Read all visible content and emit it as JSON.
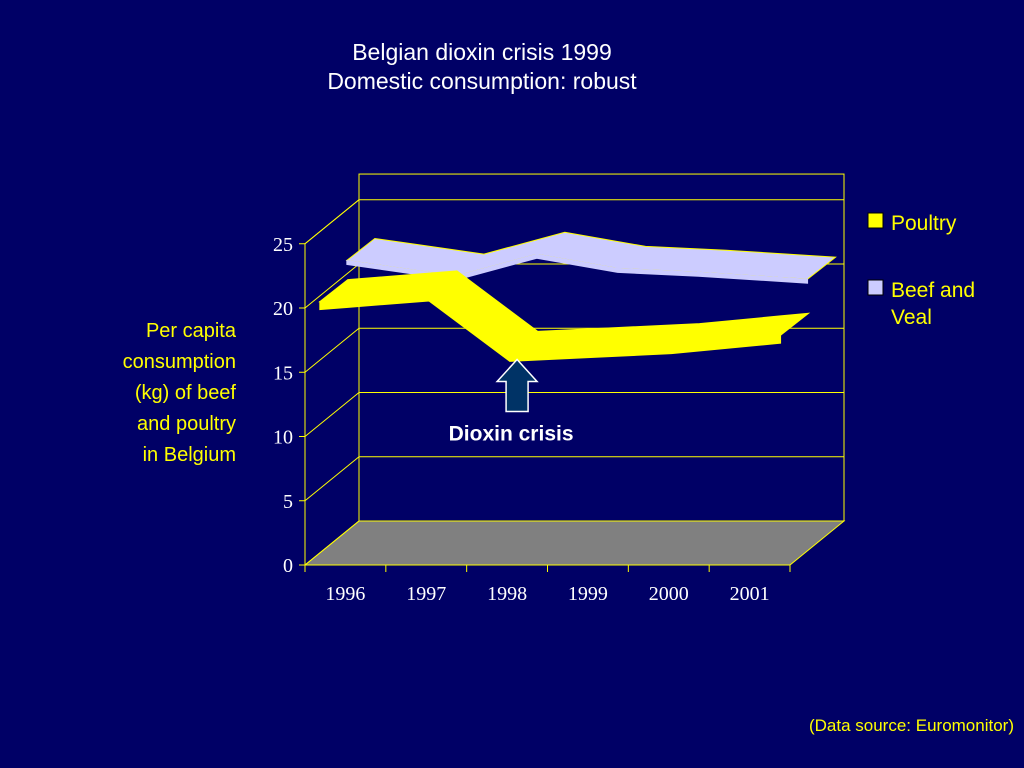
{
  "title_line1": "Belgian dioxin crisis 1999",
  "title_line2": "Domestic consumption: robust",
  "ylabel_lines": [
    "Per capita",
    "consumption",
    "(kg) of beef",
    "and poultry",
    "in Belgium"
  ],
  "source": "(Data source: Euromonitor)",
  "chart_data": {
    "type": "line",
    "three_d": true,
    "categories": [
      "1996",
      "1997",
      "1998",
      "1999",
      "2000",
      "2001"
    ],
    "series": [
      {
        "name": "Poultry",
        "values": [
          20.5,
          21.0,
          16.3,
          16.6,
          16.9,
          17.5
        ],
        "color": "#ffff00"
      },
      {
        "name": "Beef and Veal",
        "values": [
          21.5,
          20.6,
          22.3,
          21.2,
          20.9,
          20.5
        ],
        "color": "#ccccff",
        "legend_lines": [
          "Beef and",
          "Veal"
        ]
      }
    ],
    "ylim": [
      0,
      25
    ],
    "yticks": [
      "0",
      "5",
      "10",
      "15",
      "20",
      "25"
    ],
    "grid": true,
    "legend_position": "right",
    "floor_color": "#808080",
    "annotation": {
      "text": "Dioxin crisis",
      "points_to": "1998"
    },
    "arrow_color": "#003366"
  }
}
